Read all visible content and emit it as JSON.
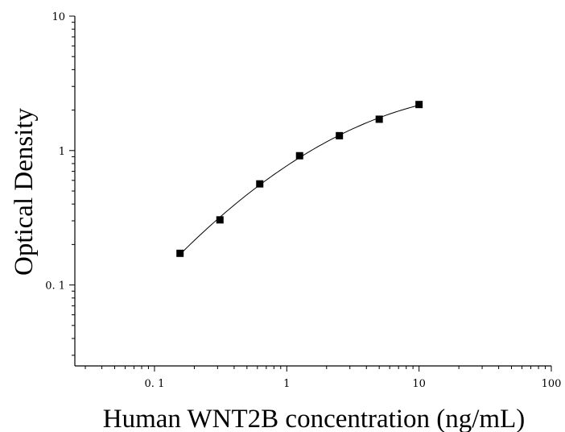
{
  "chart_data": {
    "type": "scatter",
    "title": "",
    "xlabel": "Human WNT2B concentration (ng/mL)",
    "ylabel": "Optical Density",
    "x_scale": "log",
    "y_scale": "log",
    "xlim": [
      0.025,
      100
    ],
    "ylim": [
      0.025,
      10
    ],
    "x_ticks": [
      0.1,
      1,
      10,
      100
    ],
    "x_tick_labels": [
      "0. 1",
      "1",
      "10",
      "100"
    ],
    "y_ticks": [
      0.1,
      1,
      10
    ],
    "y_tick_labels": [
      "0. 1",
      "1",
      "10"
    ],
    "grid": false,
    "legend": "none",
    "series": [
      {
        "marker": "square",
        "color": "#000000",
        "x": [
          0.156,
          0.3125,
          0.625,
          1.25,
          2.5,
          5,
          10
        ],
        "y": [
          0.172,
          0.305,
          0.565,
          0.915,
          1.29,
          1.71,
          2.2
        ]
      }
    ],
    "fit_curve": {
      "color": "#000000",
      "x_range": [
        0.15,
        10
      ]
    }
  }
}
